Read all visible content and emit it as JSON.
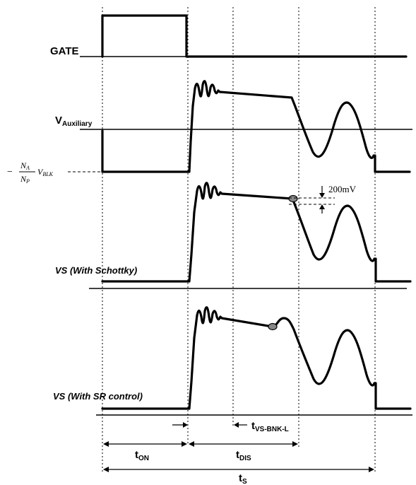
{
  "labels": {
    "gate": "GATE",
    "vaux_main": "V",
    "vaux_sub": "Auxiliary",
    "formula_minus": "−",
    "formula_num_main": "N",
    "formula_num_sub": "A",
    "formula_den_main": "N",
    "formula_den_sub": "P",
    "formula_v_main": "V",
    "formula_v_sub": "BLK",
    "vs_schottky": "VS (With Schottky)",
    "vs_sr": "VS (With SR control)",
    "threshold": "200mV",
    "t_on_main": "t",
    "t_on_sub": "ON",
    "t_dis_main": "t",
    "t_dis_sub": "DIS",
    "t_s_main": "t",
    "t_s_sub": "S",
    "t_vs_main": "t",
    "t_vs_sub": "VS-BNK-L"
  }
}
